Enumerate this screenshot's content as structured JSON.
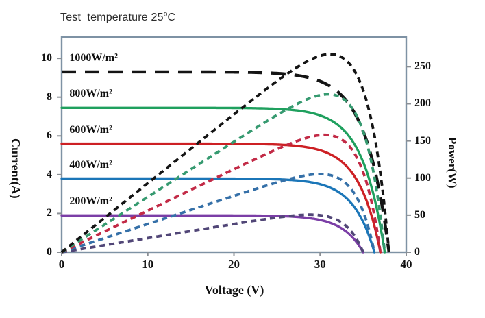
{
  "figure": {
    "title_prefix": "Test  temperature 25",
    "title_degree": "o",
    "title_suffix": "C"
  },
  "chart_data": {
    "type": "line",
    "title": "Test temperature 25 deg C",
    "xlabel": "Voltage (V)",
    "ylabel_left": "Current(A)",
    "ylabel_right": "Power(W)",
    "xlim": [
      0,
      40
    ],
    "ylim_left": [
      0,
      11.1
    ],
    "ylim_right": [
      0,
      290
    ],
    "x_ticks": [
      0,
      10,
      20,
      30,
      40
    ],
    "y_left_ticks": [
      0,
      2,
      4,
      6,
      8,
      10
    ],
    "y_right_ticks": [
      0,
      50,
      100,
      150,
      200,
      250
    ],
    "grid": false,
    "legend_position": "inline-left-labels",
    "frame_color": "#7e92a4",
    "tick_color": "#8a8f95",
    "series": [
      {
        "label": "200W/m²",
        "irradiance_w_m2": 200,
        "isc_a": 1.9,
        "voc_v": 35.0,
        "knee_a": 2.4,
        "vmp_v": 28.5,
        "pmax_w": 50,
        "iv_color": "#7b3ea6",
        "iv_style": "solid",
        "pv_color": "#514677",
        "pv_style": "short-dash"
      },
      {
        "label": "400W/m²",
        "irradiance_w_m2": 400,
        "isc_a": 3.8,
        "voc_v": 36.3,
        "knee_a": 2.45,
        "vmp_v": 29.8,
        "pmax_w": 103,
        "iv_color": "#1b76b8",
        "iv_style": "solid",
        "pv_color": "#3570a8",
        "pv_style": "short-dash"
      },
      {
        "label": "600W/m²",
        "irradiance_w_m2": 600,
        "isc_a": 5.6,
        "voc_v": 37.0,
        "knee_a": 2.5,
        "vmp_v": 30.4,
        "pmax_w": 158,
        "iv_color": "#cd2024",
        "iv_style": "solid",
        "pv_color": "#c22a46",
        "pv_style": "short-dash"
      },
      {
        "label": "800W/m²",
        "irradiance_w_m2": 800,
        "isc_a": 7.45,
        "voc_v": 37.5,
        "knee_a": 2.55,
        "vmp_v": 30.9,
        "pmax_w": 212,
        "iv_color": "#1fa05e",
        "iv_style": "solid",
        "pv_color": "#369a70",
        "pv_style": "short-dash"
      },
      {
        "label": "1000W/m²",
        "irradiance_w_m2": 1000,
        "isc_a": 9.3,
        "voc_v": 38.0,
        "knee_a": 2.7,
        "vmp_v": 31.0,
        "pmax_w": 265,
        "iv_color": "#141414",
        "iv_style": "long-dash",
        "pv_color": "#141414",
        "pv_style": "short-dash"
      }
    ]
  }
}
